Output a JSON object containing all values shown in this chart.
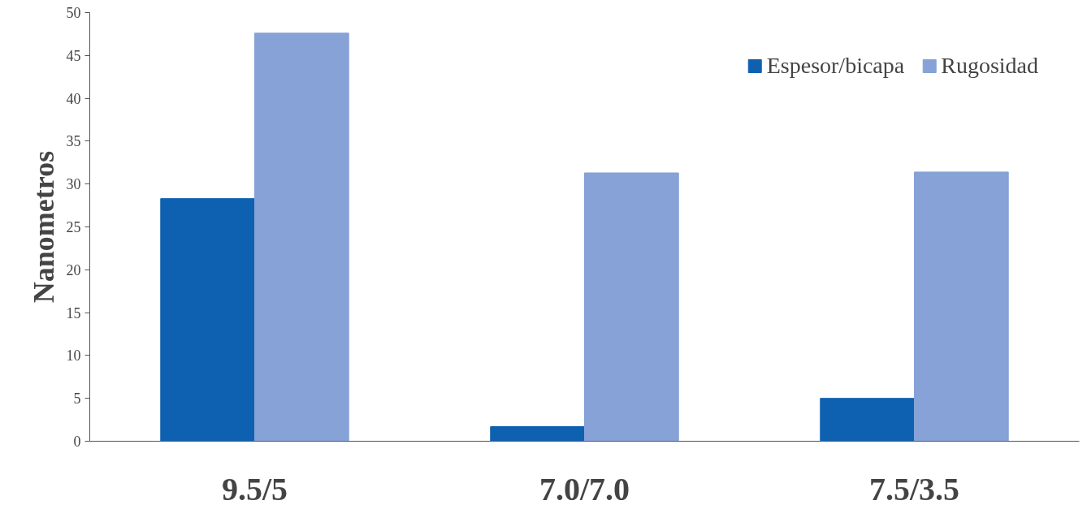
{
  "chart_data": {
    "type": "bar",
    "ylabel": "Nanometros",
    "categories": [
      "9.5/5",
      "7.0/7.0",
      "7.5/3.5"
    ],
    "series": [
      {
        "name": "Espesor/bicapa",
        "color": "#0e61b0",
        "values": [
          28.3,
          1.7,
          5.0
        ]
      },
      {
        "name": "Rugosidad",
        "color": "#86a2d6",
        "values": [
          47.6,
          31.3,
          31.4
        ]
      }
    ],
    "ylim": [
      0,
      50
    ],
    "yticks": [
      0,
      5,
      10,
      15,
      20,
      25,
      30,
      35,
      40,
      45,
      50
    ],
    "grid": false,
    "legend": "top right"
  }
}
